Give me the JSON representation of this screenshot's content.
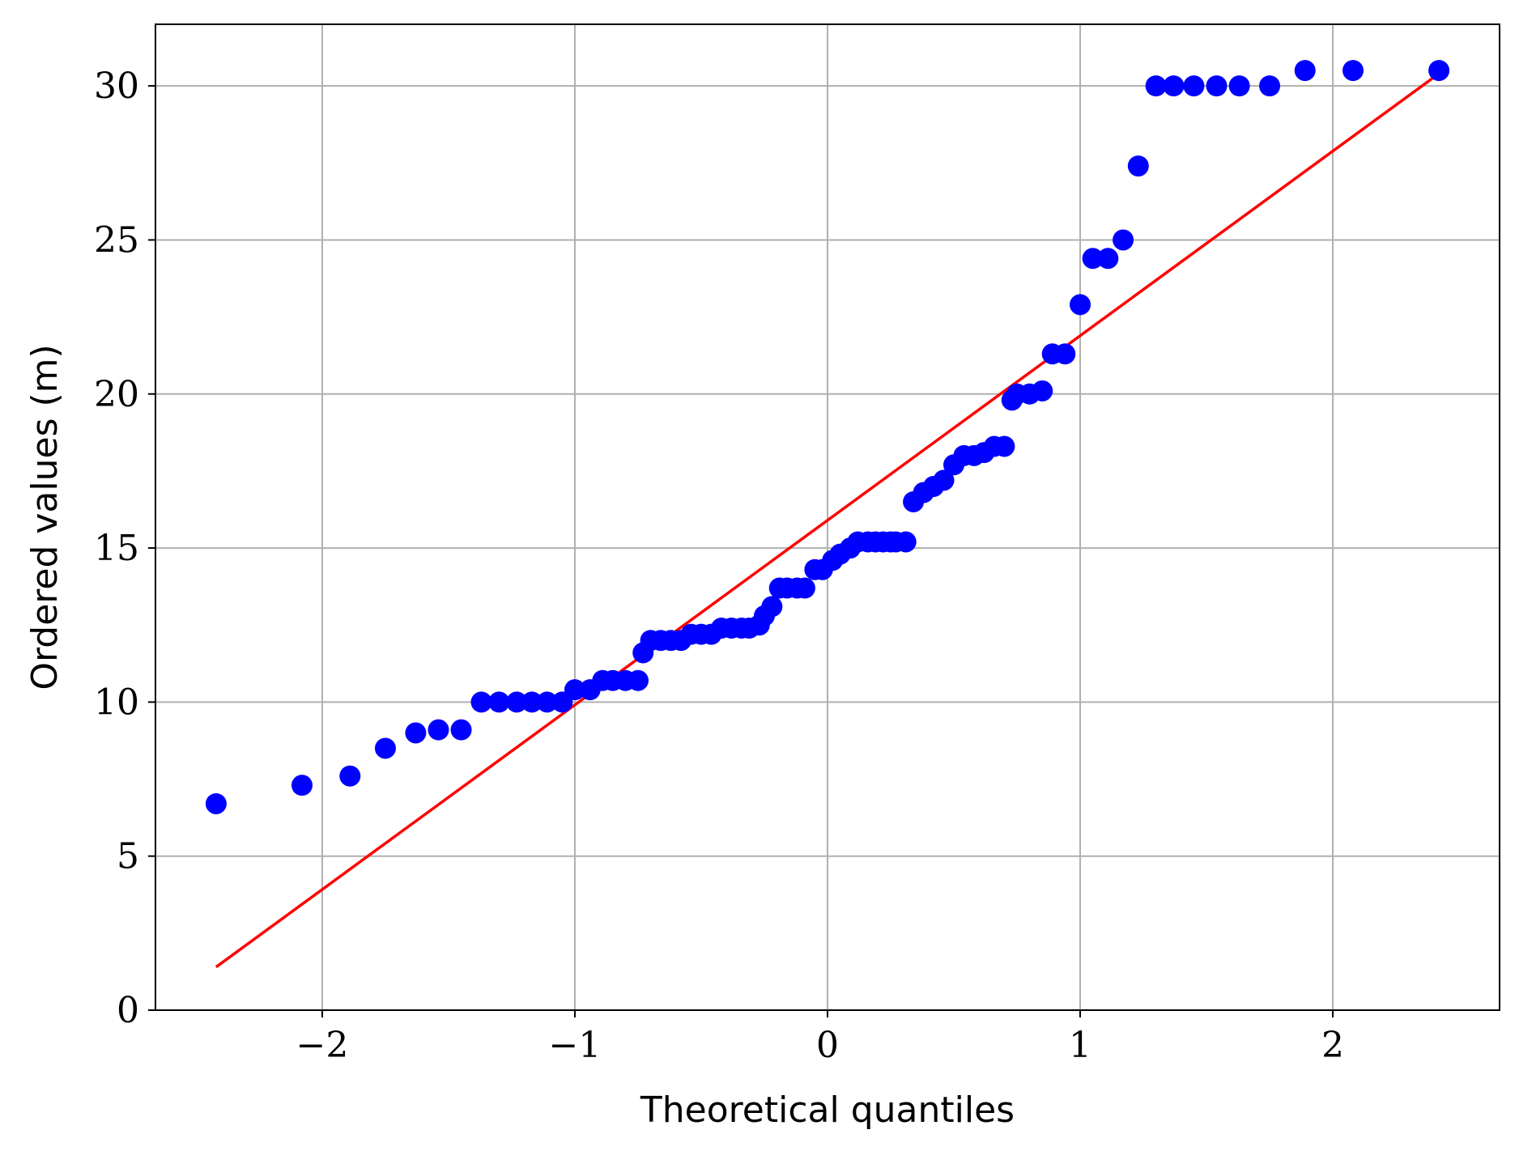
{
  "chart_data": {
    "type": "scatter",
    "title": "",
    "xlabel": "Theoretical quantiles",
    "ylabel": "Ordered values (m)",
    "xlim": [
      -2.66,
      2.66
    ],
    "ylim": [
      0,
      32
    ],
    "grid": true,
    "xticks": [
      -2,
      -1,
      0,
      1,
      2
    ],
    "xtick_labels": [
      "−2",
      "−1",
      "0",
      "1",
      "2"
    ],
    "yticks": [
      0,
      5,
      10,
      15,
      20,
      25,
      30
    ],
    "ytick_labels": [
      "0",
      "5",
      "10",
      "15",
      "20",
      "25",
      "30"
    ],
    "colors": {
      "points": "#0000ff",
      "fit_line": "#ff0000",
      "grid": "#b0b0b0"
    },
    "series": [
      {
        "kind": "points",
        "x": [
          -2.42,
          -2.08,
          -1.89,
          -1.75,
          -1.63,
          -1.54,
          -1.45,
          -1.37,
          -1.3,
          -1.23,
          -1.17,
          -1.11,
          -1.05,
          -1.0,
          -0.94,
          -0.89,
          -0.85,
          -0.8,
          -0.75,
          -0.73,
          -0.7,
          -0.66,
          -0.62,
          -0.58,
          -0.54,
          -0.5,
          -0.46,
          -0.42,
          -0.38,
          -0.34,
          -0.31,
          -0.27,
          -0.25,
          -0.22,
          -0.19,
          -0.16,
          -0.12,
          -0.09,
          -0.05,
          -0.02,
          0.02,
          0.05,
          0.09,
          0.12,
          0.16,
          0.19,
          0.22,
          0.25,
          0.27,
          0.31,
          0.34,
          0.38,
          0.42,
          0.46,
          0.5,
          0.54,
          0.58,
          0.62,
          0.66,
          0.7,
          0.73,
          0.75,
          0.8,
          0.85,
          0.89,
          0.94,
          1.0,
          1.05,
          1.11,
          1.17,
          1.23,
          1.3,
          1.37,
          1.45,
          1.54,
          1.63,
          1.75,
          1.89,
          2.08,
          2.42
        ],
        "y": [
          6.7,
          7.3,
          7.6,
          8.5,
          9.0,
          9.1,
          9.1,
          10.0,
          10.0,
          10.0,
          10.0,
          10.0,
          10.0,
          10.4,
          10.4,
          10.7,
          10.7,
          10.7,
          10.7,
          11.6,
          12.0,
          12.0,
          12.0,
          12.0,
          12.2,
          12.2,
          12.2,
          12.4,
          12.4,
          12.4,
          12.4,
          12.5,
          12.8,
          13.1,
          13.7,
          13.7,
          13.7,
          13.7,
          14.3,
          14.3,
          14.6,
          14.8,
          15.0,
          15.2,
          15.2,
          15.2,
          15.2,
          15.2,
          15.2,
          15.2,
          16.5,
          16.8,
          17.0,
          17.2,
          17.7,
          18.0,
          18.0,
          18.1,
          18.3,
          18.3,
          19.8,
          20.0,
          20.0,
          20.1,
          21.3,
          21.3,
          22.9,
          24.4,
          24.4,
          25.0,
          27.4,
          30.0,
          30.0,
          30.0,
          30.0,
          30.0,
          30.0,
          30.5,
          30.5,
          30.5
        ]
      },
      {
        "kind": "line",
        "x": [
          -2.42,
          2.42
        ],
        "y": [
          1.4,
          30.4
        ]
      }
    ]
  }
}
